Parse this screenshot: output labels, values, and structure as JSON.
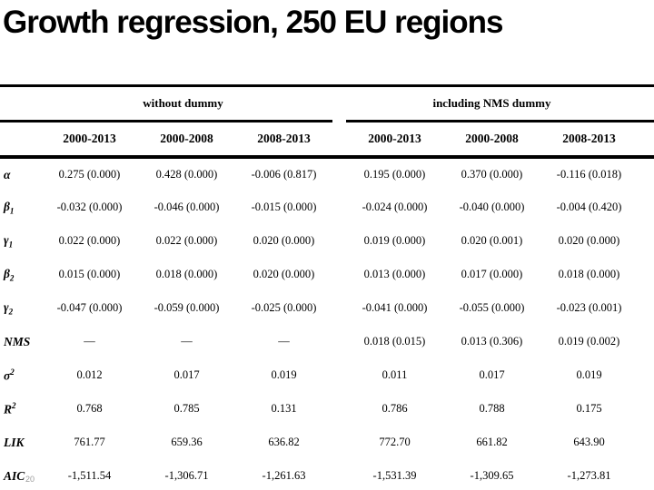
{
  "title": "Growth regression, 250 EU regions",
  "page_number": "20",
  "colors": {
    "background": "#ffffff",
    "text": "#000000",
    "page_number": "#9b9b9b"
  },
  "table": {
    "group_headers": [
      "without dummy",
      "including NMS dummy"
    ],
    "column_headers": [
      "2000-2013",
      "2000-2008",
      "2008-2013",
      "2000-2013",
      "2000-2008",
      "2008-2013"
    ],
    "rows": [
      {
        "label": {
          "base": "α",
          "sub": "",
          "sup": ""
        },
        "values": [
          "0.275 (0.000)",
          "0.428 (0.000)",
          "-0.006 (0.817)",
          "0.195 (0.000)",
          "0.370 (0.000)",
          "-0.116 (0.018)"
        ]
      },
      {
        "label": {
          "base": "β",
          "sub": "1",
          "sup": ""
        },
        "values": [
          "-0.032 (0.000)",
          "-0.046 (0.000)",
          "-0.015 (0.000)",
          "-0.024 (0.000)",
          "-0.040 (0.000)",
          "-0.004 (0.420)"
        ]
      },
      {
        "label": {
          "base": "γ",
          "sub": "1",
          "sup": ""
        },
        "values": [
          "0.022 (0.000)",
          "0.022 (0.000)",
          "0.020 (0.000)",
          "0.019 (0.000)",
          "0.020 (0.001)",
          "0.020 (0.000)"
        ]
      },
      {
        "label": {
          "base": "β",
          "sub": "2",
          "sup": ""
        },
        "values": [
          "0.015 (0.000)",
          "0.018 (0.000)",
          "0.020 (0.000)",
          "0.013 (0.000)",
          "0.017 (0.000)",
          "0.018 (0.000)"
        ]
      },
      {
        "label": {
          "base": "γ",
          "sub": "2",
          "sup": ""
        },
        "values": [
          "-0.047 (0.000)",
          "-0.059 (0.000)",
          "-0.025 (0.000)",
          "-0.041 (0.000)",
          "-0.055 (0.000)",
          "-0.023 (0.001)"
        ]
      },
      {
        "label": {
          "base": "NMS",
          "sub": "",
          "sup": ""
        },
        "values": [
          "—",
          "—",
          "—",
          "0.018 (0.015)",
          "0.013 (0.306)",
          "0.019 (0.002)"
        ]
      },
      {
        "label": {
          "base": "σ",
          "sub": "",
          "sup": "2"
        },
        "values": [
          "0.012",
          "0.017",
          "0.019",
          "0.011",
          "0.017",
          "0.019"
        ]
      },
      {
        "label": {
          "base": "R",
          "sub": "",
          "sup": "2"
        },
        "values": [
          "0.768",
          "0.785",
          "0.131",
          "0.786",
          "0.788",
          "0.175"
        ]
      },
      {
        "label": {
          "base": "LIK",
          "sub": "",
          "sup": ""
        },
        "values": [
          "761.77",
          "659.36",
          "636.82",
          "772.70",
          "661.82",
          "643.90"
        ]
      },
      {
        "label": {
          "base": "AIC",
          "sub": "",
          "sup": ""
        },
        "values": [
          "-1,511.54",
          "-1,306.71",
          "-1,261.63",
          "-1,531.39",
          "-1,309.65",
          "-1,273.81"
        ]
      }
    ]
  }
}
